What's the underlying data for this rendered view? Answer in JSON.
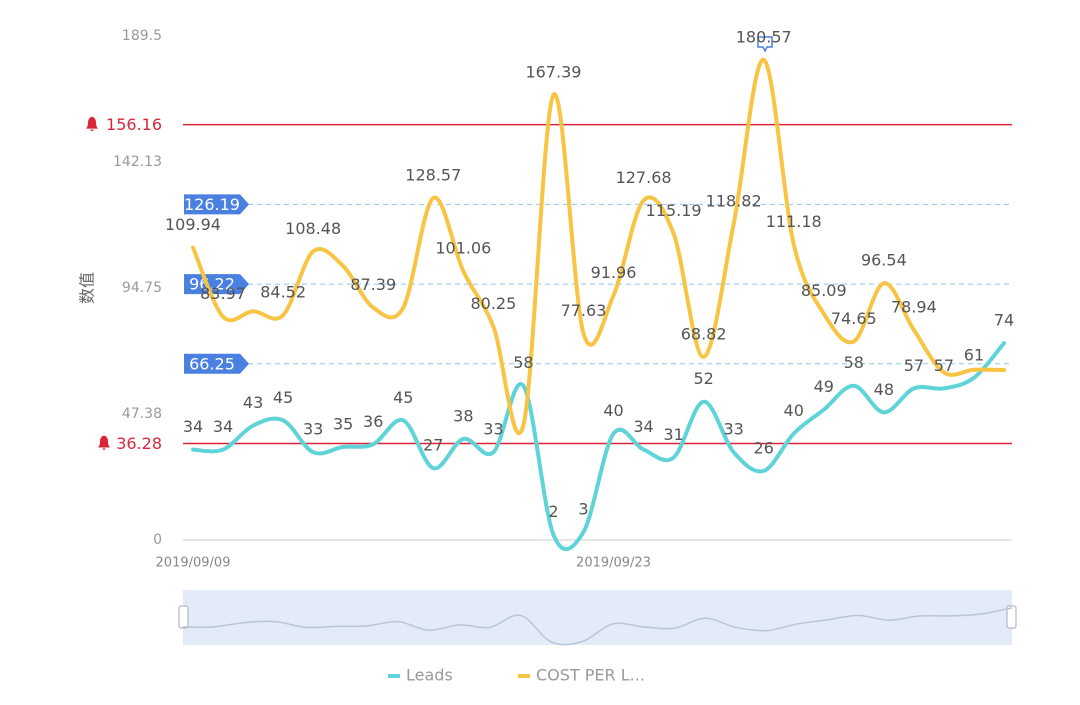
{
  "chart_data": {
    "type": "line",
    "y_axis_label": "数值",
    "x": [
      "2019/09/09",
      null,
      null,
      null,
      null,
      null,
      null,
      null,
      null,
      null,
      null,
      null,
      null,
      null,
      "2019/09/23",
      null,
      null,
      null,
      null,
      null,
      null,
      null,
      null,
      null,
      null,
      null,
      null,
      null
    ],
    "series": [
      {
        "name": "Leads",
        "color": "#5ed3d8",
        "values": [
          34,
          34,
          43,
          45,
          33,
          35,
          36,
          45,
          27,
          38,
          33,
          58,
          2,
          3,
          40,
          34,
          31,
          52,
          33,
          26,
          40,
          49,
          58,
          48,
          57,
          57,
          61,
          74
        ]
      },
      {
        "name": "COST PER L...",
        "color": "#f7c443",
        "values": [
          109.94,
          83.97,
          86,
          84.52,
          108.48,
          103,
          87.39,
          87.4,
          128.57,
          101.06,
          80.25,
          43.2,
          167.39,
          77.63,
          91.96,
          127.68,
          115.19,
          68.82,
          118.82,
          180.57,
          111.18,
          85.09,
          74.65,
          96.54,
          78.94,
          63,
          64,
          63.9
        ],
        "value_labels": [
          "109.94",
          "83.97",
          null,
          "84.52",
          "108.48",
          null,
          "87.39",
          null,
          "128.57",
          "101.06",
          "80.25",
          null,
          "167.39",
          "77.63",
          "91.96",
          "127.68",
          "115.19",
          "68.82",
          "118.82",
          "180.57",
          "111.18",
          "85.09",
          "74.65",
          "96.54",
          "78.94",
          null,
          null,
          null
        ]
      }
    ],
    "ylim": [
      0,
      189.5
    ],
    "yticks": [
      0,
      47.38,
      94.75,
      142.13,
      189.5
    ],
    "alert_lines": {
      "color": "#d9263a",
      "values": [
        156.16,
        36.28
      ]
    },
    "reference_lines": {
      "color": "#4a80e0",
      "values": [
        126.19,
        96.22,
        66.25
      ]
    }
  }
}
